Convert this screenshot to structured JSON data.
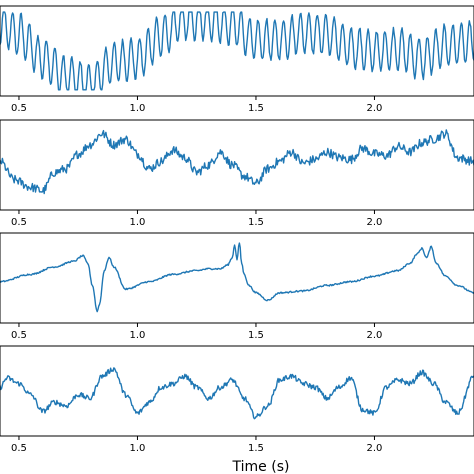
{
  "chart_data": [
    {
      "type": "line",
      "panel": 1,
      "xlim": [
        0.42,
        2.42
      ],
      "xticks": [
        0.5,
        1.0,
        1.5,
        2.0
      ],
      "xtick_labels": [
        "0.5",
        "1.0",
        "1.5",
        "2.0"
      ],
      "series": [
        {
          "color": "#1f77b4",
          "x": [
            0.42,
            0.5,
            0.6,
            0.7,
            0.8,
            0.9,
            1.0,
            1.1,
            1.2,
            1.3,
            1.4,
            1.5,
            1.6,
            1.7,
            1.8,
            1.9,
            2.0,
            2.1,
            2.2,
            2.3,
            2.42
          ],
          "y": [
            0.7,
            0.45,
            -0.2,
            -0.7,
            -0.9,
            -0.3,
            -0.2,
            0.4,
            0.85,
            0.85,
            0.7,
            0.3,
            0.3,
            0.5,
            0.45,
            0.1,
            0.0,
            0.05,
            -0.2,
            0.15,
            0.25
          ],
          "oscillation": {
            "freq_hz": 28,
            "amplitude": 0.55
          }
        }
      ]
    },
    {
      "type": "line",
      "panel": 2,
      "xlim": [
        0.42,
        2.42
      ],
      "xticks": [
        0.5,
        1.0,
        1.5,
        2.0
      ],
      "xtick_labels": [
        "0.5",
        "1.0",
        "1.5",
        "2.0"
      ],
      "series": [
        {
          "color": "#1f77b4",
          "x": [
            0.42,
            0.48,
            0.55,
            0.6,
            0.65,
            0.7,
            0.75,
            0.8,
            0.85,
            0.9,
            0.95,
            1.0,
            1.05,
            1.1,
            1.15,
            1.2,
            1.25,
            1.3,
            1.35,
            1.4,
            1.45,
            1.5,
            1.55,
            1.6,
            1.65,
            1.7,
            1.75,
            1.8,
            1.85,
            1.9,
            1.95,
            2.0,
            2.05,
            2.1,
            2.15,
            2.2,
            2.25,
            2.3,
            2.35,
            2.42
          ],
          "y": [
            0.1,
            -0.4,
            -0.6,
            -0.7,
            -0.2,
            -0.1,
            0.3,
            0.55,
            0.85,
            0.55,
            0.7,
            0.3,
            -0.1,
            0.1,
            0.4,
            0.2,
            -0.2,
            0.0,
            0.35,
            0.0,
            -0.3,
            -0.5,
            -0.1,
            0.1,
            0.35,
            0.05,
            0.15,
            0.35,
            0.2,
            0.15,
            0.45,
            0.3,
            0.25,
            0.5,
            0.35,
            0.6,
            0.7,
            0.85,
            0.2,
            0.1
          ],
          "noise_amplitude": 0.12
        }
      ]
    },
    {
      "type": "line",
      "panel": 3,
      "xlim": [
        0.42,
        2.42
      ],
      "xticks": [
        0.5,
        1.0,
        1.5,
        2.0
      ],
      "xtick_labels": [
        "0.5",
        "1.0",
        "1.5",
        "2.0"
      ],
      "series": [
        {
          "color": "#1f77b4",
          "x": [
            0.42,
            0.55,
            0.65,
            0.73,
            0.77,
            0.79,
            0.81,
            0.83,
            0.84,
            0.86,
            0.88,
            0.9,
            0.95,
            1.05,
            1.15,
            1.25,
            1.3,
            1.35,
            1.38,
            1.4,
            1.41,
            1.42,
            1.43,
            1.44,
            1.45,
            1.47,
            1.5,
            1.55,
            1.6,
            1.7,
            1.8,
            1.9,
            2.0,
            2.1,
            2.15,
            2.18,
            2.2,
            2.22,
            2.24,
            2.26,
            2.3,
            2.35,
            2.42
          ],
          "y": [
            -0.1,
            0.1,
            0.3,
            0.45,
            0.6,
            0.4,
            -0.2,
            -0.9,
            -0.7,
            0.2,
            0.55,
            0.3,
            -0.3,
            -0.1,
            0.1,
            0.2,
            0.25,
            0.25,
            0.35,
            0.55,
            0.9,
            0.5,
            0.95,
            0.4,
            0.1,
            -0.2,
            -0.4,
            -0.6,
            -0.4,
            -0.35,
            -0.2,
            -0.1,
            0.05,
            0.2,
            0.4,
            0.65,
            0.8,
            0.55,
            0.85,
            0.4,
            0.05,
            -0.2,
            -0.4
          ],
          "noise_amplitude": 0.02
        }
      ]
    },
    {
      "type": "line",
      "panel": 4,
      "xlim": [
        0.42,
        2.42
      ],
      "xticks": [
        0.5,
        1.0,
        1.5,
        2.0
      ],
      "xtick_labels": [
        "0.5",
        "1.0",
        "1.5",
        "2.0"
      ],
      "xlabel": "Time (s)",
      "series": [
        {
          "color": "#1f77b4",
          "x": [
            0.42,
            0.45,
            0.5,
            0.55,
            0.6,
            0.65,
            0.7,
            0.75,
            0.8,
            0.85,
            0.9,
            0.95,
            1.0,
            1.05,
            1.1,
            1.15,
            1.2,
            1.25,
            1.3,
            1.35,
            1.4,
            1.45,
            1.5,
            1.55,
            1.6,
            1.65,
            1.7,
            1.75,
            1.8,
            1.85,
            1.9,
            1.95,
            2.0,
            2.05,
            2.1,
            2.15,
            2.2,
            2.25,
            2.3,
            2.35,
            2.42
          ],
          "y": [
            0.1,
            0.35,
            0.2,
            -0.1,
            -0.55,
            -0.3,
            -0.4,
            -0.1,
            -0.2,
            0.4,
            0.6,
            -0.1,
            -0.6,
            -0.3,
            0.1,
            0.2,
            0.4,
            0.1,
            -0.2,
            0.1,
            0.3,
            -0.2,
            -0.7,
            -0.4,
            0.3,
            0.4,
            0.2,
            0.1,
            -0.2,
            0.1,
            0.35,
            -0.5,
            -0.6,
            0.1,
            0.3,
            0.2,
            0.5,
            0.2,
            -0.3,
            -0.6,
            0.4
          ],
          "noise_amplitude": 0.07
        }
      ]
    }
  ]
}
